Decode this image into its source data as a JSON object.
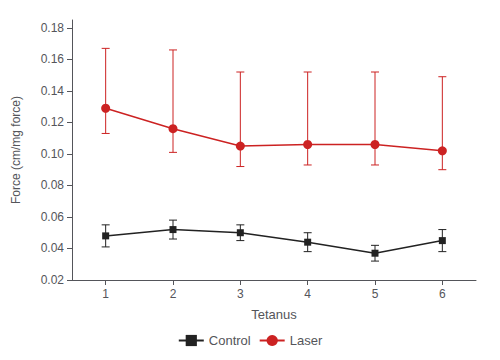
{
  "chart_data": {
    "type": "line",
    "xlabel": "Tetanus",
    "ylabel": "Force (cm/mg force)",
    "x": [
      1,
      2,
      3,
      4,
      5,
      6
    ],
    "xlim": [
      0.5,
      6.5
    ],
    "xticks": [
      1,
      2,
      3,
      4,
      5,
      6
    ],
    "ylim": [
      0.02,
      0.185
    ],
    "yticks": [
      0.02,
      0.04,
      0.06,
      0.08,
      {
        "value": 0.1,
        "label": "0.10"
      },
      0.12,
      0.14,
      0.16,
      0.18
    ],
    "grid": false,
    "legend": "bottom",
    "series": [
      {
        "name": "Control",
        "color": "#222222",
        "marker": "square",
        "values": [
          0.048,
          0.052,
          0.05,
          0.044,
          0.037,
          0.045
        ],
        "error_lower": [
          0.007,
          0.006,
          0.005,
          0.006,
          0.005,
          0.007
        ],
        "error_upper": [
          0.007,
          0.006,
          0.005,
          0.006,
          0.005,
          0.007
        ]
      },
      {
        "name": "Laser",
        "color": "#cc2222",
        "marker": "circle",
        "values": [
          0.129,
          0.116,
          0.105,
          0.106,
          0.106,
          0.102
        ],
        "error_lower": [
          0.016,
          0.015,
          0.013,
          0.013,
          0.013,
          0.012
        ],
        "error_upper": [
          0.038,
          0.05,
          0.047,
          0.046,
          0.046,
          0.047
        ]
      }
    ]
  }
}
